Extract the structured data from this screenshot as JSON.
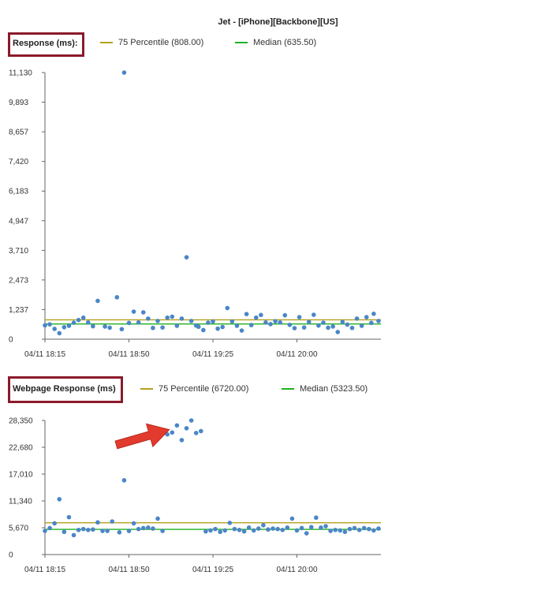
{
  "page_title": "Jet - [iPhone][Backbone][US]",
  "colors": {
    "percentile_75": "#b5a01c",
    "median": "#1fb11f",
    "points": "#4a86c8",
    "highlight_box": "#8b1a2b",
    "annotation_arrow": "#e23b2e"
  },
  "chart_data": [
    {
      "type": "scatter",
      "legend_title": "Response (ms):",
      "legend": [
        {
          "label": "75 Percentile (808.00)",
          "color": "#b5a01c"
        },
        {
          "label": "Median (635.50)",
          "color": "#1fb11f"
        }
      ],
      "reference_lines": {
        "percentile_75": 808.0,
        "median": 635.5
      },
      "x_ticks": [
        "04/11 18:15",
        "04/11 18:50",
        "04/11 19:25",
        "04/11 20:00"
      ],
      "x_tick_minutes": [
        0,
        35,
        70,
        105
      ],
      "x_range_minutes": [
        0,
        140
      ],
      "y_ticks": [
        "0",
        "1,237",
        "2,473",
        "3,710",
        "4,947",
        "6,183",
        "7,420",
        "8,657",
        "9,893",
        "11,130"
      ],
      "ylim": [
        0,
        11130
      ],
      "grid": false,
      "points_minutes": [
        0,
        2,
        4,
        6,
        8,
        10,
        12,
        14,
        16,
        18,
        20,
        22,
        25,
        27,
        30,
        32,
        33,
        35,
        37,
        39,
        41,
        43,
        45,
        47,
        49,
        51,
        53,
        55,
        57,
        59,
        61,
        63,
        64,
        66,
        68,
        70,
        72,
        74,
        76,
        78,
        80,
        82,
        84,
        86,
        88,
        90,
        92,
        94,
        96,
        98,
        100,
        102,
        104,
        106,
        108,
        110,
        112,
        114,
        116,
        118,
        120,
        122,
        124,
        126,
        128,
        130,
        132,
        134,
        136,
        137,
        139
      ],
      "points_ms": [
        580,
        620,
        430,
        250,
        500,
        560,
        690,
        800,
        900,
        700,
        540,
        1600,
        530,
        480,
        1750,
        420,
        11130,
        680,
        1150,
        700,
        1120,
        860,
        470,
        760,
        490,
        900,
        940,
        560,
        860,
        3420,
        760,
        570,
        520,
        380,
        690,
        740,
        440,
        510,
        1300,
        740,
        560,
        360,
        1050,
        590,
        900,
        1010,
        700,
        630,
        750,
        700,
        1000,
        600,
        460,
        920,
        490,
        720,
        1020,
        570,
        690,
        480,
        530,
        300,
        720,
        610,
        470,
        860,
        560,
        920,
        680,
        1060,
        760
      ]
    },
    {
      "type": "scatter",
      "legend_title": "Webpage Response (ms)",
      "legend": [
        {
          "label": "75 Percentile (6720.00)",
          "color": "#b5a01c"
        },
        {
          "label": "Median (5323.50)",
          "color": "#1fb11f"
        }
      ],
      "reference_lines": {
        "percentile_75": 6720.0,
        "median": 5323.5
      },
      "x_ticks": [
        "04/11 18:15",
        "04/11 18:50",
        "04/11 19:25",
        "04/11 20:00"
      ],
      "x_tick_minutes": [
        0,
        35,
        70,
        105
      ],
      "x_range_minutes": [
        0,
        140
      ],
      "y_ticks": [
        "0",
        "5,670",
        "11,340",
        "17,010",
        "22,680",
        "28,350"
      ],
      "ylim": [
        0,
        28350
      ],
      "grid": false,
      "points_minutes": [
        0,
        2,
        4,
        6,
        8,
        10,
        12,
        14,
        16,
        18,
        20,
        22,
        24,
        26,
        28,
        31,
        33,
        35,
        37,
        39,
        41,
        43,
        45,
        47,
        49,
        51,
        53,
        55,
        57,
        59,
        61,
        63,
        65,
        67,
        69,
        71,
        73,
        75,
        77,
        79,
        81,
        83,
        85,
        87,
        89,
        91,
        93,
        95,
        97,
        99,
        101,
        103,
        105,
        107,
        109,
        111,
        113,
        115,
        117,
        119,
        121,
        123,
        125,
        127,
        129,
        131,
        133,
        135,
        137,
        139
      ],
      "points_ms": [
        5000,
        5600,
        6600,
        11700,
        4800,
        7900,
        4100,
        5200,
        5400,
        5200,
        5300,
        6800,
        5000,
        5000,
        7000,
        4700,
        15700,
        5000,
        6600,
        5400,
        5600,
        5700,
        5500,
        7600,
        5000,
        25400,
        25800,
        27300,
        24200,
        26700,
        28350,
        25700,
        26100,
        4900,
        5100,
        5400,
        4800,
        5100,
        6700,
        5400,
        5200,
        4900,
        5700,
        5100,
        5500,
        6200,
        5300,
        5500,
        5400,
        5200,
        5700,
        7600,
        5100,
        5600,
        4500,
        5800,
        7800,
        5700,
        6000,
        5000,
        5200,
        5100,
        4800,
        5400,
        5600,
        5200,
        5600,
        5400,
        5100,
        5500
      ]
    }
  ]
}
